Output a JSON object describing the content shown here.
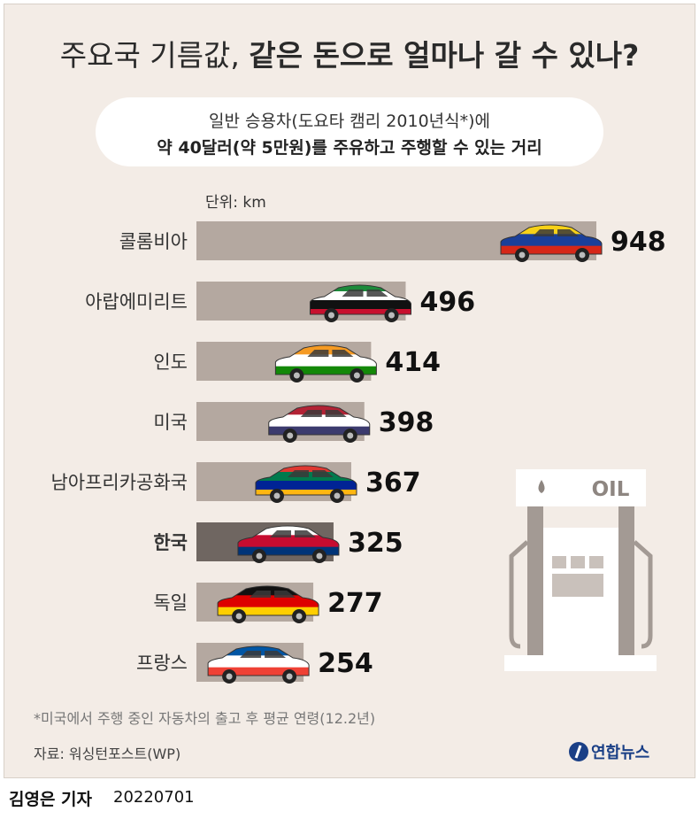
{
  "title": {
    "light": "주요국 기름값, ",
    "bold": "같은 돈으로 얼마나 갈 수 있나?"
  },
  "subtitle": {
    "line1": "일반 승용차(도요타 캠리 2010년식*)에",
    "line2": "약 40달러(약 5만원)를 주유하고 주행할 수 있는 거리"
  },
  "unit_label": "단위: km",
  "footnote": "*미국에서 주행 중인 자동차의 출고 후 평균 연령(12.2년)",
  "source": "자료: 워싱턴포스트(WP)",
  "logo_text": "연합뉴스",
  "reporter": "김영은 기자",
  "date": "20220701",
  "pump_label": "OIL",
  "chart_data": {
    "type": "bar",
    "orientation": "horizontal",
    "unit": "km",
    "categories": [
      "콜롬비아",
      "아랍에미리트",
      "인도",
      "미국",
      "남아프리카공화국",
      "한국",
      "독일",
      "프랑스"
    ],
    "values": [
      948,
      496,
      414,
      398,
      367,
      325,
      277,
      254
    ],
    "highlight": "한국",
    "flag_colors": [
      [
        "#f7d117",
        "#1a3f9a",
        "#d62718"
      ],
      [
        "#1c8a3a",
        "#ffffff",
        "#111111",
        "#c8102e"
      ],
      [
        "#f59a23",
        "#ffffff",
        "#138808"
      ],
      [
        "#b22234",
        "#ffffff",
        "#3c3b6e"
      ],
      [
        "#de3831",
        "#007a4d",
        "#002395",
        "#ffb612"
      ],
      [
        "#ffffff",
        "#c60c30",
        "#003478"
      ],
      [
        "#111111",
        "#dd0000",
        "#ffce00"
      ],
      [
        "#0055a4",
        "#ffffff",
        "#ef4135"
      ]
    ],
    "colors": {
      "bar": "#b4a8a0",
      "bar_highlight": "#6f6661"
    }
  }
}
